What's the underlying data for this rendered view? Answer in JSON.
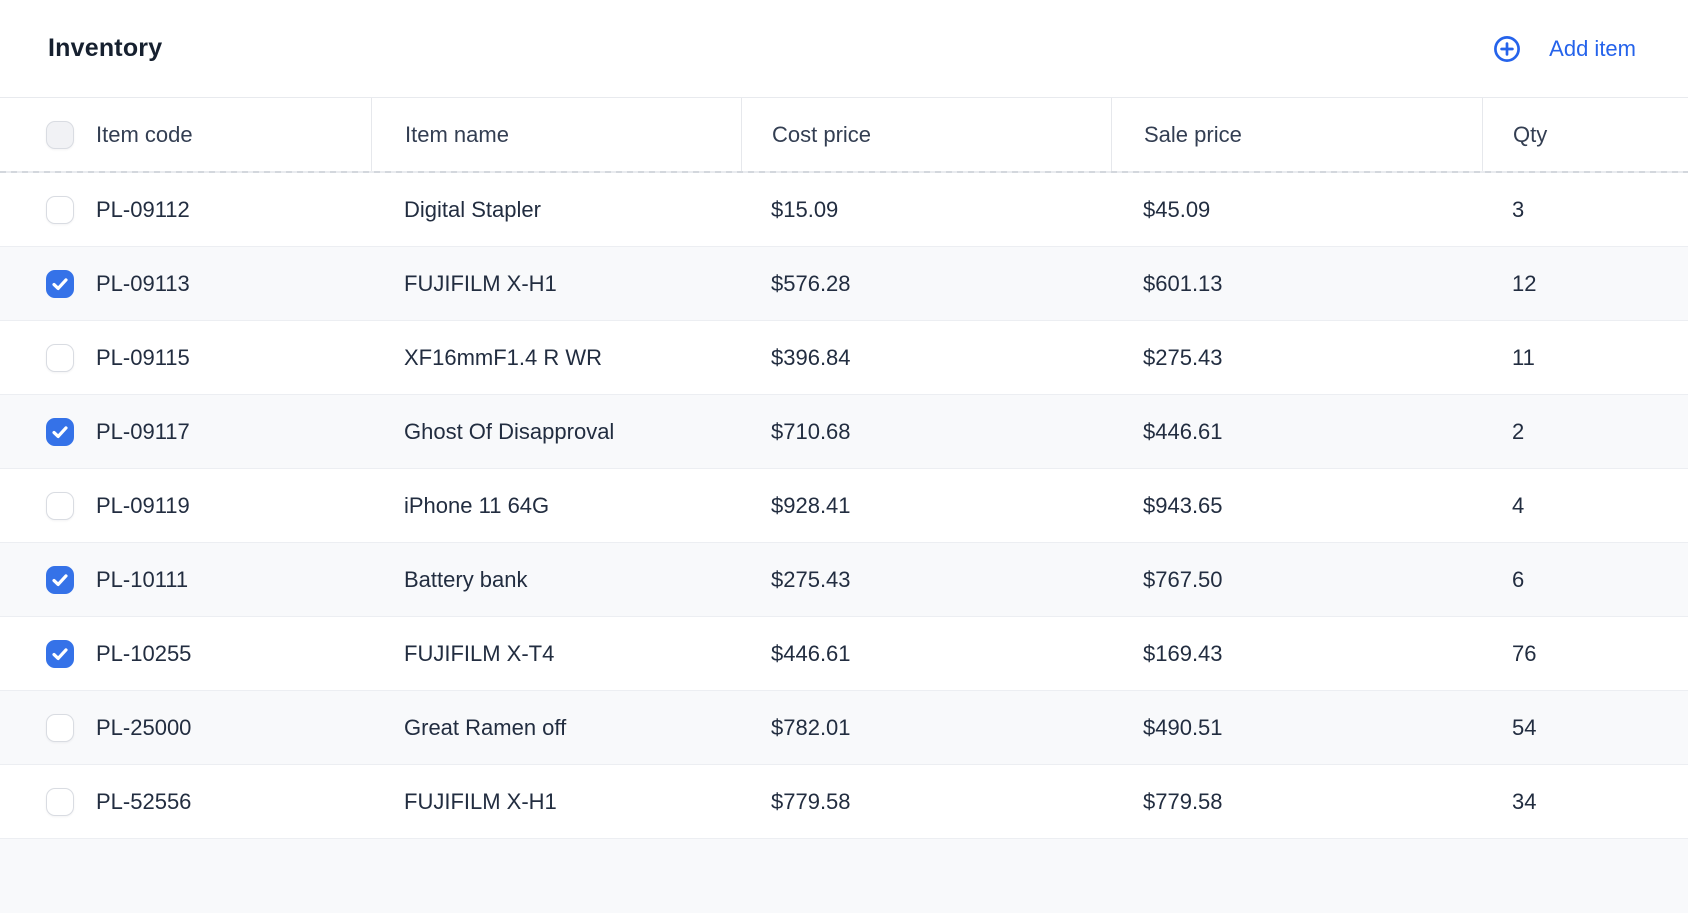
{
  "header": {
    "title": "Inventory",
    "add_item_label": "Add item"
  },
  "table": {
    "columns": [
      "Item code",
      "Item name",
      "Cost price",
      "Sale price",
      "Qty"
    ],
    "select_all_checked": false,
    "rows": [
      {
        "code": "PL-09112",
        "name": "Digital Stapler",
        "cost": "$15.09",
        "sale": "$45.09",
        "qty": "3",
        "checked": false
      },
      {
        "code": "PL-09113",
        "name": "FUJIFILM X-H1",
        "cost": "$576.28",
        "sale": "$601.13",
        "qty": "12",
        "checked": true
      },
      {
        "code": "PL-09115",
        "name": "XF16mmF1.4 R WR",
        "cost": "$396.84",
        "sale": "$275.43",
        "qty": "11",
        "checked": false
      },
      {
        "code": "PL-09117",
        "name": "Ghost Of Disapproval",
        "cost": "$710.68",
        "sale": "$446.61",
        "qty": "2",
        "checked": true
      },
      {
        "code": "PL-09119",
        "name": "iPhone 11 64G",
        "cost": "$928.41",
        "sale": "$943.65",
        "qty": "4",
        "checked": false
      },
      {
        "code": "PL-10111",
        "name": "Battery bank",
        "cost": "$275.43",
        "sale": "$767.50",
        "qty": "6",
        "checked": true
      },
      {
        "code": "PL-10255",
        "name": "FUJIFILM X-T4",
        "cost": "$446.61",
        "sale": "$169.43",
        "qty": "76",
        "checked": true
      },
      {
        "code": "PL-25000",
        "name": "Great Ramen off",
        "cost": "$782.01",
        "sale": "$490.51",
        "qty": "54",
        "checked": false
      },
      {
        "code": "PL-52556",
        "name": "FUJIFILM X-H1",
        "cost": "$779.58",
        "sale": "$779.58",
        "qty": "34",
        "checked": false
      }
    ]
  },
  "icons": {
    "add_button": "plus-circle-icon",
    "checkbox_mark": "check-icon"
  },
  "colors": {
    "accent_blue": "#2563eb",
    "checkbox_checked_blue": "#3572e8",
    "row_stripe": "#f8f9fb",
    "body_text": "#222d40",
    "title_text": "#16202f",
    "header_text": "#333e52",
    "row_border": "#eceef2",
    "header_border": "#e9ebef"
  }
}
